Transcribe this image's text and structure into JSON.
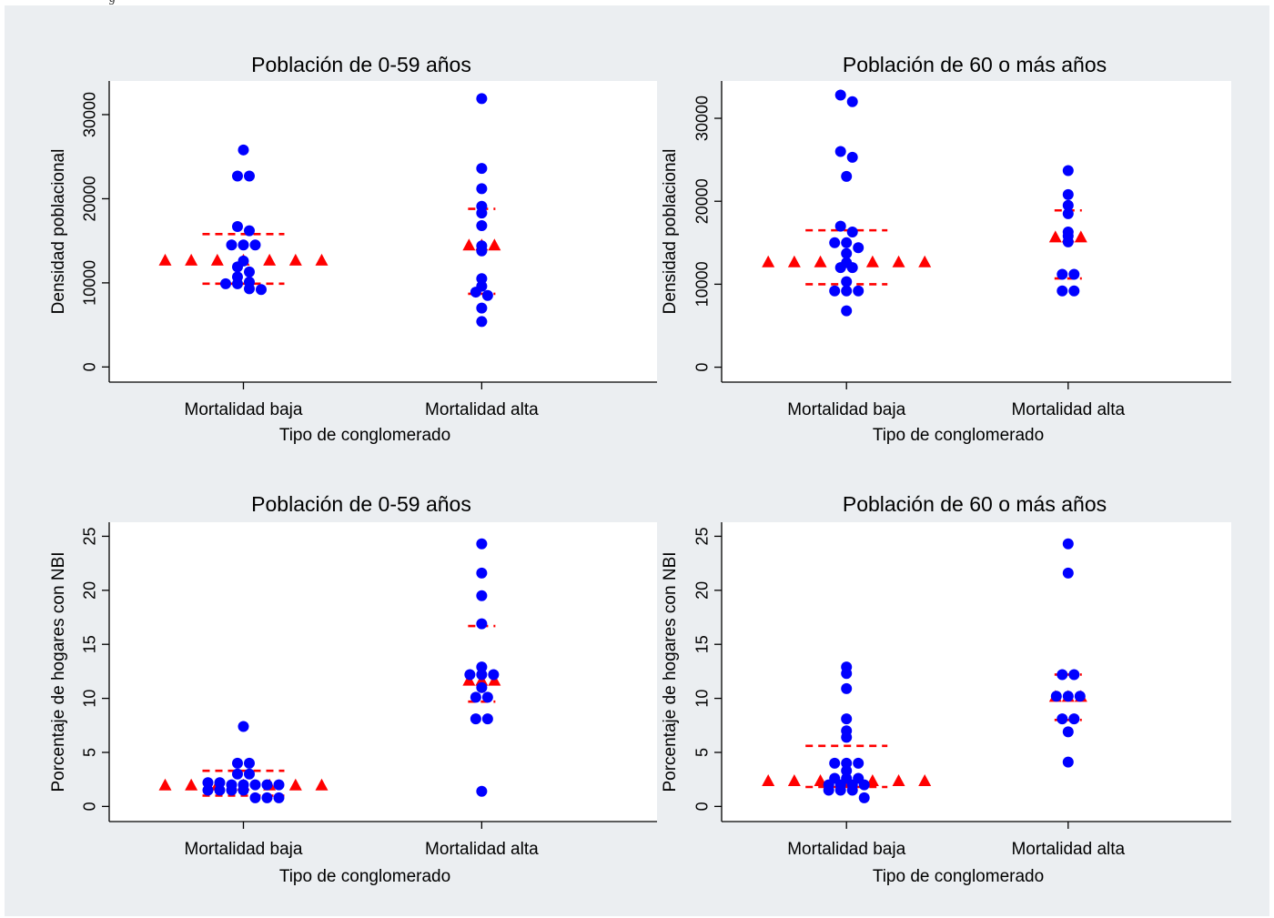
{
  "header_fragment": "g",
  "colors": {
    "points": "#0000ff",
    "markers": "#ff0000",
    "plot_bg": "#ffffff",
    "figure_bg": "#ebeef1"
  },
  "chart_data": [
    {
      "type": "scatter",
      "title": "Población de 0-59 años",
      "xlabel": "Tipo de conglomerado",
      "ylabel": "Densidad poblacional",
      "categories": [
        "Mortalidad baja",
        "Mortalidad alta"
      ],
      "yticks": [
        0,
        10000,
        20000,
        30000
      ],
      "ylim": [
        -1800,
        34000
      ],
      "grid": false,
      "series": [
        {
          "category": "Mortalidad baja",
          "values": [
            25800,
            22700,
            22700,
            16700,
            16200,
            14500,
            14500,
            14500,
            12600,
            11900,
            11300,
            10700,
            10100,
            9900,
            9900,
            9300,
            9200
          ]
        },
        {
          "category": "Mortalidad alta",
          "values": [
            31900,
            23600,
            21200,
            19100,
            18300,
            16800,
            14400,
            13800,
            10500,
            9600,
            8900,
            8500,
            7000,
            5400
          ]
        }
      ],
      "medians": [
        12600,
        14400
      ],
      "p25": [
        9900,
        8700
      ],
      "p75": [
        15800,
        18800
      ]
    },
    {
      "type": "scatter",
      "title": "Población de 60 o más años",
      "xlabel": "Tipo de conglomerado",
      "ylabel": "Densidad poblacional",
      "categories": [
        "Mortalidad baja",
        "Mortalidad alta"
      ],
      "yticks": [
        0,
        10000,
        20000,
        30000
      ],
      "ylim": [
        -1800,
        34500
      ],
      "grid": false,
      "series": [
        {
          "category": "Mortalidad baja",
          "values": [
            32800,
            32000,
            26000,
            25300,
            23000,
            17000,
            16300,
            15000,
            15000,
            14400,
            13700,
            12600,
            12000,
            12000,
            10300,
            9200,
            9200,
            9200,
            6800
          ]
        },
        {
          "category": "Mortalidad alta",
          "values": [
            23700,
            20800,
            19500,
            18500,
            16300,
            15800,
            15100,
            11200,
            11200,
            9200,
            9200
          ]
        }
      ],
      "medians": [
        12600,
        15600
      ],
      "p25": [
        10000,
        10700
      ],
      "p75": [
        16500,
        18900
      ]
    },
    {
      "type": "scatter",
      "title": "Población de 0-59 años",
      "xlabel": "Tipo de conglomerado",
      "ylabel": "Porcentaje de hogares con NBI",
      "categories": [
        "Mortalidad baja",
        "Mortalidad alta"
      ],
      "yticks": [
        0,
        5,
        10,
        15,
        20,
        25
      ],
      "ylim": [
        -1.4,
        26.3
      ],
      "grid": false,
      "series": [
        {
          "category": "Mortalidad baja",
          "values": [
            7.4,
            4.0,
            4.0,
            3.0,
            3.0,
            2.2,
            2.2,
            2.0,
            2.0,
            2.0,
            2.0,
            2.0,
            1.5,
            1.5,
            1.5,
            1.5,
            0.8,
            0.8,
            0.8
          ]
        },
        {
          "category": "Mortalidad alta",
          "values": [
            24.3,
            21.6,
            19.5,
            16.9,
            12.9,
            12.2,
            12.2,
            12.2,
            11.0,
            10.1,
            10.1,
            8.1,
            8.1,
            1.4
          ]
        }
      ],
      "medians": [
        1.9,
        11.6
      ],
      "p25": [
        1.0,
        9.7
      ],
      "p75": [
        3.3,
        16.7
      ]
    },
    {
      "type": "scatter",
      "title": "Población de 60 o más años",
      "xlabel": "Tipo de conglomerado",
      "ylabel": "Porcentaje de hogares con NBI",
      "categories": [
        "Mortalidad baja",
        "Mortalidad alta"
      ],
      "yticks": [
        0,
        5,
        10,
        15,
        20,
        25
      ],
      "ylim": [
        -1.4,
        26.3
      ],
      "grid": false,
      "series": [
        {
          "category": "Mortalidad baja",
          "values": [
            12.9,
            12.3,
            10.9,
            8.1,
            7.0,
            6.4,
            4.0,
            4.0,
            4.0,
            3.3,
            2.6,
            2.6,
            2.6,
            2.0,
            2.0,
            2.0,
            2.0,
            1.5,
            1.5,
            1.5,
            0.8
          ]
        },
        {
          "category": "Mortalidad alta",
          "values": [
            24.3,
            21.6,
            12.2,
            12.2,
            10.2,
            10.2,
            10.2,
            8.1,
            8.1,
            6.9,
            4.1
          ]
        }
      ],
      "medians": [
        2.3,
        10.1
      ],
      "p25": [
        1.8,
        8.0
      ],
      "p75": [
        5.6,
        12.2
      ]
    }
  ]
}
